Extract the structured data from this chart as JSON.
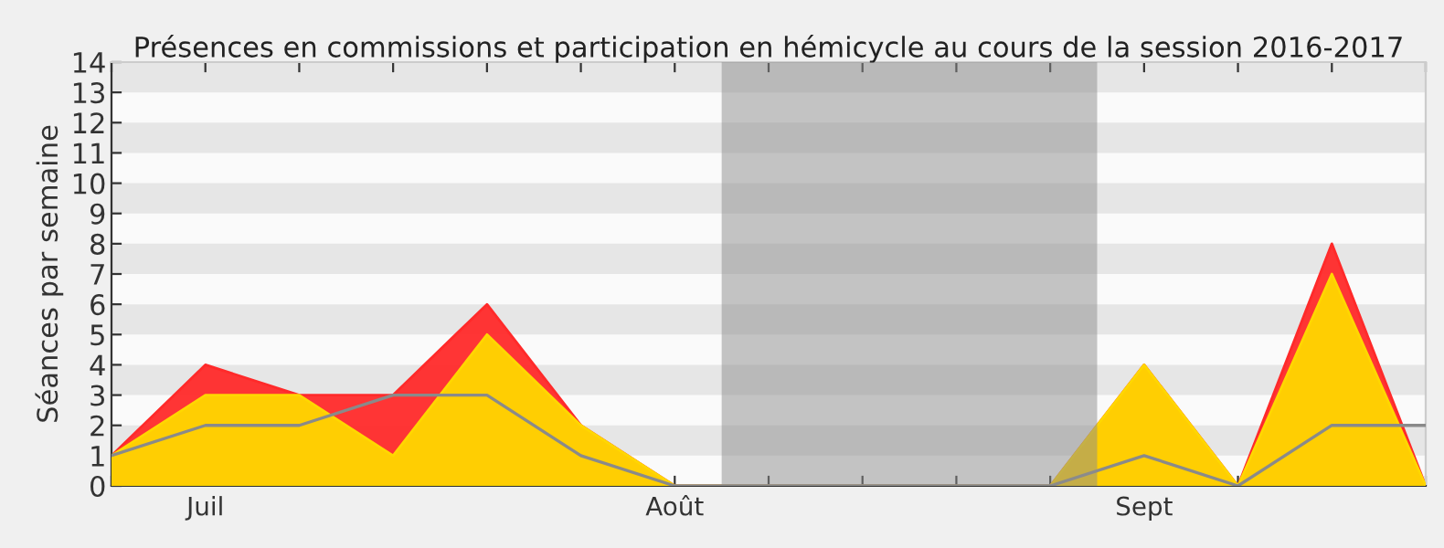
{
  "chart_data": {
    "type": "area",
    "title": "Présences en commissions et participation en hémicycle au cours de la session 2016-2017",
    "ylabel": "Séances par semaine",
    "categories": [
      null,
      "Juil",
      null,
      null,
      null,
      null,
      "Août",
      null,
      null,
      null,
      null,
      "Sept",
      null,
      null,
      null
    ],
    "series": [
      {
        "color": "#ff2a2a",
        "values": [
          1,
          4,
          3,
          3,
          6,
          2,
          0,
          0,
          0,
          0,
          0,
          4,
          0,
          8,
          0
        ]
      },
      {
        "color": "#ffd700",
        "values": [
          1,
          3,
          3,
          1,
          5,
          2,
          0,
          0,
          0,
          0,
          0,
          4,
          0,
          7,
          0
        ]
      },
      {
        "type": "line",
        "color": "#8a8a8a",
        "values": [
          1,
          2,
          2,
          3,
          3,
          1,
          0,
          0,
          0,
          0,
          0,
          1,
          0,
          2,
          2
        ]
      }
    ],
    "ylim": [
      0,
      14
    ],
    "yticks": [
      0,
      1,
      2,
      3,
      4,
      5,
      6,
      7,
      8,
      9,
      10,
      11,
      12,
      13,
      14
    ],
    "legend": false
  }
}
